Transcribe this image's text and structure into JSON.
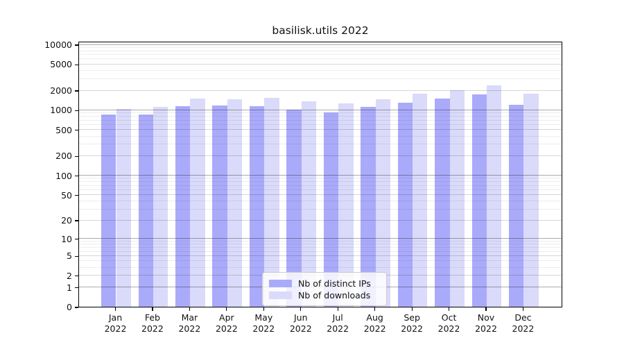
{
  "title": "basilisk.utils 2022",
  "chart_data": {
    "type": "bar",
    "title": "basilisk.utils 2022",
    "categories": [
      "Jan",
      "Feb",
      "Mar",
      "Apr",
      "May",
      "Jun",
      "Jul",
      "Aug",
      "Sep",
      "Oct",
      "Nov",
      "Dec"
    ],
    "category_year": "2022",
    "series": [
      {
        "name": "Nb of distinct IPs",
        "color": "#aaaafa",
        "values": [
          845,
          860,
          1130,
          1160,
          1150,
          1010,
          910,
          1105,
          1280,
          1480,
          1730,
          1210
        ]
      },
      {
        "name": "Nb of downloads",
        "color": "#dadafa",
        "values": [
          1045,
          1115,
          1485,
          1460,
          1540,
          1365,
          1255,
          1460,
          1785,
          2020,
          2390,
          1760
        ]
      }
    ],
    "yticks": [
      0,
      1,
      2,
      5,
      10,
      20,
      50,
      100,
      200,
      500,
      1000,
      2000,
      5000,
      10000
    ],
    "ylabel": "",
    "xlabel": "",
    "yscale": "log10(value+1)",
    "ylim": [
      0,
      11300
    ],
    "grid": true,
    "legend_position": "bottom-center"
  }
}
